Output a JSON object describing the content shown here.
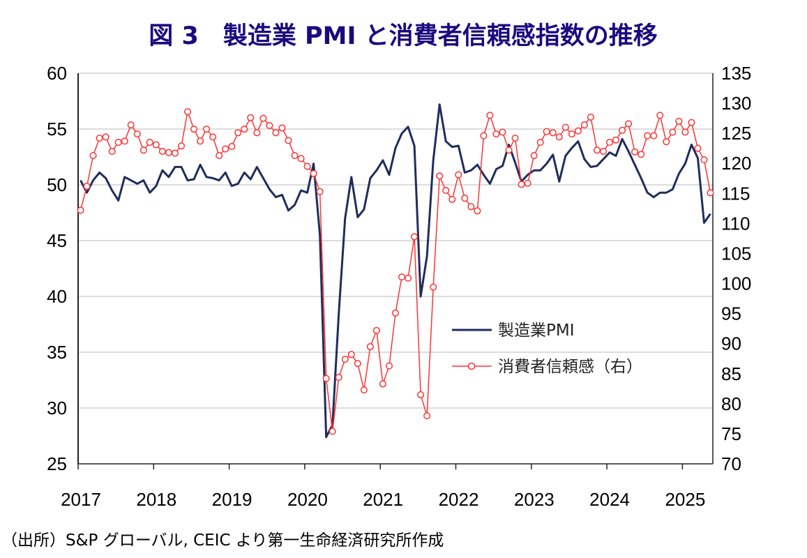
{
  "chart_data": {
    "type": "line",
    "title": "図 3　製造業 PMI と消費者信頼感指数の推移",
    "source_note": "（出所）S&P グローバル, CEIC より第一生命経済研究所作成",
    "x_tick_labels": [
      "2017",
      "2018",
      "2019",
      "2020",
      "2021",
      "2022",
      "2023",
      "2024",
      "2025"
    ],
    "x_start": "2017-01",
    "x_end": "2025-05",
    "frequency": "monthly",
    "left_axis": {
      "ylim": [
        25,
        60
      ],
      "ticks": [
        25,
        30,
        35,
        40,
        45,
        50,
        55,
        60
      ]
    },
    "right_axis": {
      "ylim": [
        70,
        135
      ],
      "ticks": [
        70,
        75,
        80,
        85,
        90,
        95,
        100,
        105,
        110,
        115,
        120,
        125,
        130,
        135
      ]
    },
    "grid": true,
    "legend_placement": "center-right",
    "series": [
      {
        "name": "製造業PMI",
        "axis": "left",
        "color": "#1f2d5c",
        "marker": "none",
        "values": [
          50.4,
          49.3,
          50.4,
          51.1,
          50.6,
          49.5,
          48.6,
          50.7,
          50.4,
          50.1,
          50.4,
          49.3,
          49.9,
          51.3,
          50.7,
          51.6,
          51.6,
          50.4,
          50.5,
          51.8,
          50.7,
          50.6,
          50.4,
          51.1,
          49.9,
          50.1,
          51.1,
          50.5,
          51.6,
          50.6,
          49.6,
          48.9,
          49.1,
          47.7,
          48.2,
          49.5,
          49.3,
          51.9,
          45.5,
          27.4,
          28.5,
          38.5,
          47.0,
          50.7,
          47.1,
          47.8,
          50.6,
          51.3,
          52.2,
          50.9,
          53.3,
          54.6,
          55.2,
          53.5,
          40.0,
          43.6,
          52.2,
          57.2,
          53.9,
          53.4,
          53.5,
          51.1,
          51.3,
          51.8,
          50.9,
          50.1,
          51.4,
          51.7,
          53.6,
          52.0,
          50.3,
          50.9,
          51.3,
          51.3,
          51.9,
          52.7,
          50.3,
          52.6,
          53.3,
          53.9,
          52.3,
          51.6,
          51.7,
          52.3,
          52.9,
          52.6,
          54.1,
          53.0,
          51.8,
          50.6,
          49.3,
          48.9,
          49.3,
          49.3,
          49.6,
          51.0,
          51.9,
          53.6,
          52.4,
          46.6,
          47.4
        ]
      },
      {
        "name": "消費者信頼感（右）",
        "axis": "right",
        "color": "#ff3333",
        "marker": "circle",
        "values": [
          112.2,
          116.2,
          121.3,
          124.2,
          124.4,
          122.0,
          123.5,
          123.7,
          126.4,
          124.9,
          122.2,
          123.5,
          123.1,
          122.0,
          121.8,
          121.7,
          122.9,
          128.6,
          125.7,
          123.7,
          125.7,
          124.4,
          121.3,
          122.4,
          122.8,
          125.1,
          125.7,
          127.6,
          125.1,
          127.5,
          126.3,
          125.1,
          125.9,
          123.8,
          121.3,
          120.8,
          119.5,
          118.3,
          115.3,
          84.2,
          75.4,
          84.4,
          87.4,
          88.2,
          86.7,
          82.3,
          89.5,
          92.2,
          83.3,
          86.3,
          95.1,
          101.1,
          100.9,
          107.8,
          81.5,
          78.0,
          99.4,
          117.9,
          115.5,
          114.0,
          118.1,
          114.2,
          112.8,
          112.1,
          124.6,
          128.0,
          124.9,
          125.2,
          122.2,
          124.2,
          116.5,
          116.7,
          121.3,
          123.5,
          125.3,
          125.1,
          124.4,
          126.0,
          124.9,
          125.4,
          126.4,
          127.7,
          122.2,
          122.0,
          123.5,
          123.9,
          125.5,
          126.6,
          121.9,
          121.5,
          124.6,
          124.6,
          128.0,
          123.6,
          125.2,
          127.0,
          125.2,
          126.8,
          122.5,
          120.6,
          115.1
        ]
      }
    ]
  }
}
